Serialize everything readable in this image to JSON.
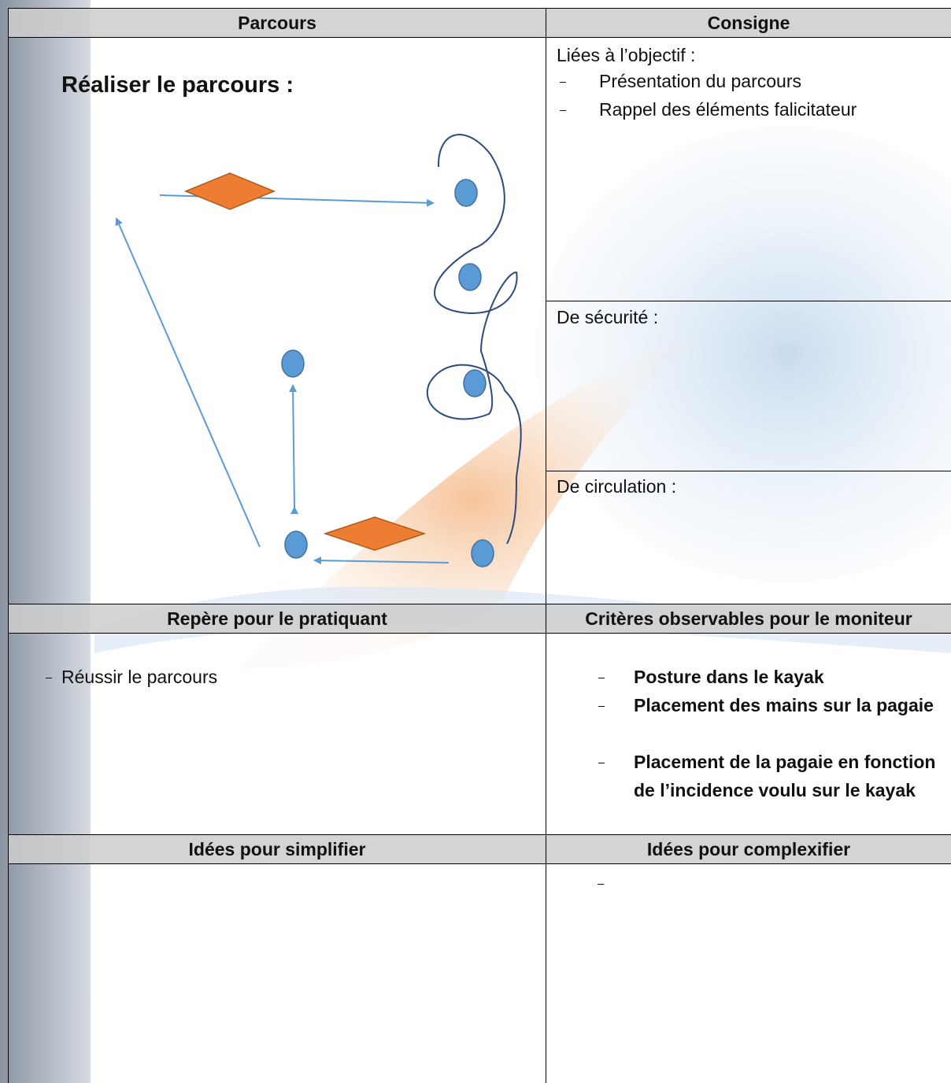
{
  "parcours": {
    "header": "Parcours",
    "title": "Réaliser le parcours :"
  },
  "consigne": {
    "header": "Consigne",
    "sections": [
      {
        "title": "Liées à l’objectif :",
        "items": [
          "Présentation du parcours",
          "Rappel des éléments falicitateur"
        ]
      },
      {
        "title": "De sécurité :"
      },
      {
        "title": "De circulation :"
      }
    ]
  },
  "repere": {
    "header": "Repère pour le pratiquant",
    "items": [
      "Réussir le parcours"
    ]
  },
  "criteres": {
    "header": "Critères observables pour le moniteur",
    "items": [
      "Posture dans le kayak",
      "Placement des mains sur la pagaie",
      "Placement de la pagaie en fonction de l’incidence voulu sur le kayak"
    ]
  },
  "simplifier": {
    "header": "Idées pour simplifier"
  },
  "complexifier": {
    "header": "Idées pour complexifier"
  }
}
